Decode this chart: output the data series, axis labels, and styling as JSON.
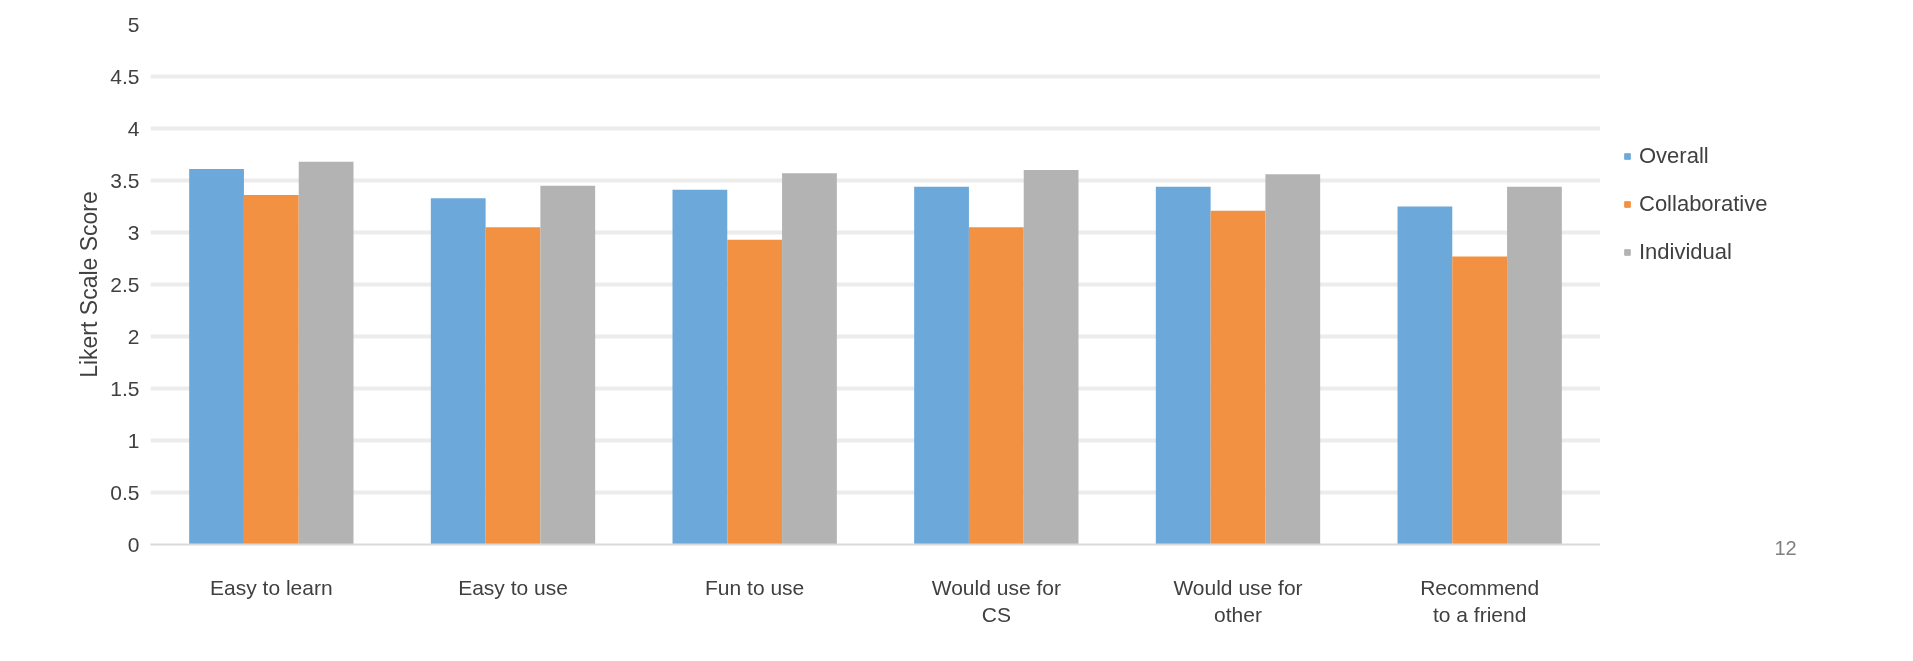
{
  "chart_data": {
    "type": "bar",
    "categories": [
      "Easy to learn",
      "Easy to use",
      "Fun to use",
      "Would use for\nCS",
      "Would use for\nother",
      "Recommend\nto a friend"
    ],
    "series": [
      {
        "name": "Overall",
        "color": "#6ca9da",
        "values": [
          3.61,
          3.33,
          3.41,
          3.44,
          3.44,
          3.25
        ]
      },
      {
        "name": "Collaborative",
        "color": "#f19141",
        "values": [
          3.36,
          3.05,
          2.93,
          3.05,
          3.21,
          2.77
        ]
      },
      {
        "name": "Individual",
        "color": "#b3b3b3",
        "values": [
          3.68,
          3.45,
          3.57,
          3.6,
          3.56,
          3.44
        ]
      }
    ],
    "ylabel": "Likert Scale Score",
    "ylim": [
      0,
      5
    ],
    "yticks": [
      0,
      0.5,
      1,
      1.5,
      2,
      2.5,
      3,
      3.5,
      4,
      4.5,
      5
    ],
    "grid": "y",
    "legend": "right",
    "annotations": [
      "12"
    ]
  }
}
